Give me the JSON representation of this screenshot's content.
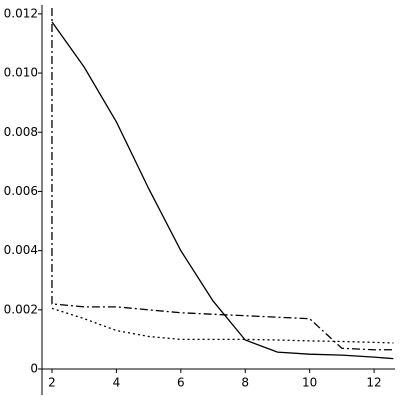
{
  "chart_data": {
    "type": "line",
    "xlim": [
      1.69,
      12.65
    ],
    "ylim": [
      0,
      0.0123
    ],
    "xticks": [
      2,
      4,
      6,
      8,
      10,
      12
    ],
    "yticks": [
      0,
      0.002,
      0.004,
      0.006,
      0.008,
      {
        "value": 0.01,
        "label": "0.010"
      },
      0.012
    ],
    "series": [
      {
        "color": "#000000",
        "style": "solid",
        "x": [
          2,
          3,
          4,
          5,
          6,
          7,
          8,
          9,
          10,
          11,
          12,
          12.6
        ],
        "values": [
          0.01173,
          0.0102,
          0.00835,
          0.0061,
          0.004,
          0.0023,
          0.00098,
          0.00057,
          0.0005,
          0.00047,
          0.0004,
          0.00035
        ]
      },
      {
        "color": "#000000",
        "style": "dashdot",
        "x": [
          2,
          2,
          3,
          4,
          5,
          6,
          7,
          8,
          9,
          10,
          11,
          12,
          12.6
        ],
        "values": [
          0.0122,
          0.0022,
          0.0021,
          0.0021,
          0.002,
          0.0019,
          0.00185,
          0.0018,
          0.00175,
          0.0017,
          0.0007,
          0.00065,
          0.00065
        ]
      },
      {
        "color": "#000000",
        "style": "dot",
        "x": [
          2,
          3,
          4,
          5,
          6,
          7,
          8,
          9,
          10,
          11,
          12,
          12.6
        ],
        "values": [
          0.00205,
          0.0017,
          0.0013,
          0.0011,
          0.001,
          0.001,
          0.001,
          0.00098,
          0.00095,
          0.00093,
          0.0009,
          0.00088
        ]
      }
    ]
  }
}
